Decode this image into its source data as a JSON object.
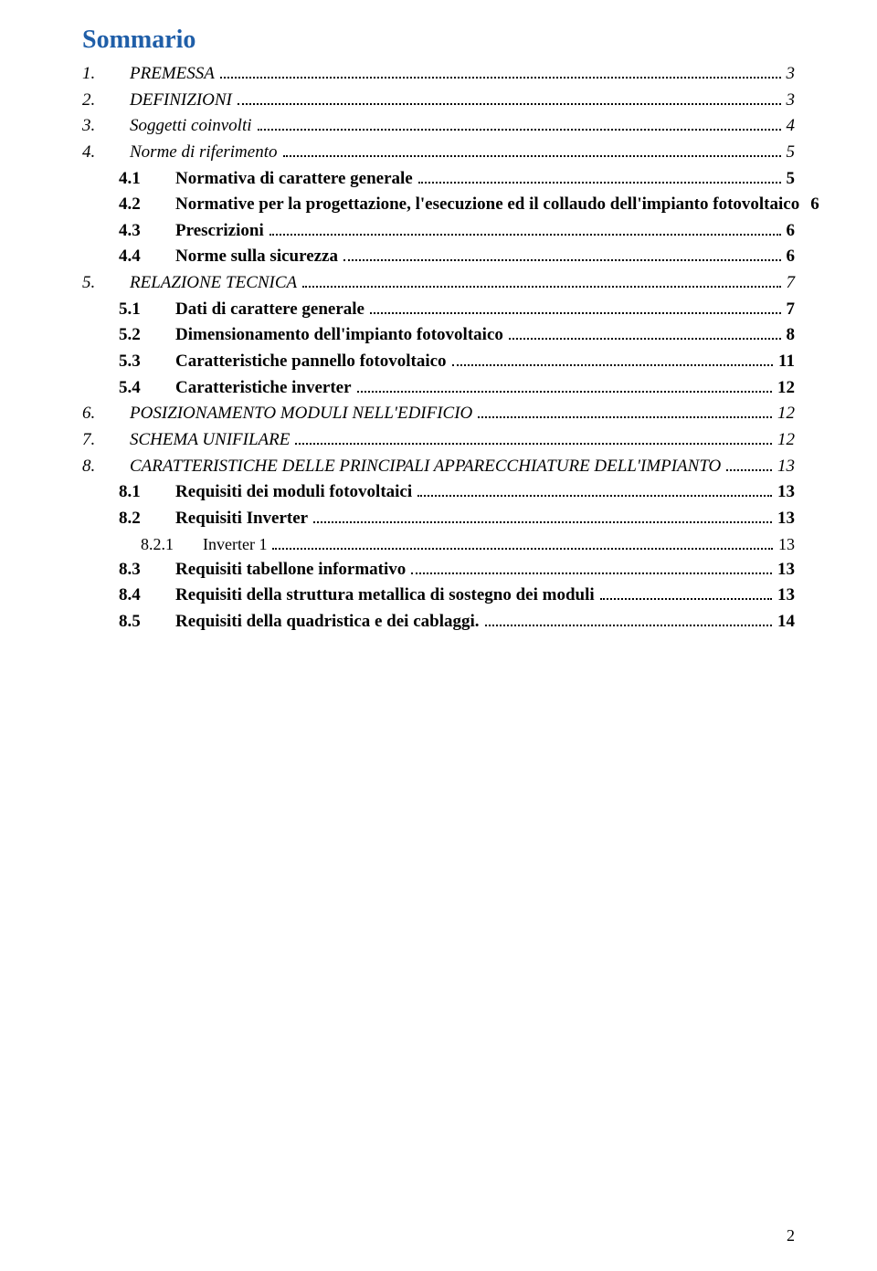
{
  "title": "Sommario",
  "page_number": "2",
  "colors": {
    "title": "#1f5ea8",
    "text": "#000000",
    "background": "#ffffff"
  },
  "entries": [
    {
      "level": 1,
      "num": "1.",
      "label": "PREMESSA",
      "page": "3"
    },
    {
      "level": 1,
      "num": "2.",
      "label": "DEFINIZIONI",
      "page": "3"
    },
    {
      "level": 1,
      "num": "3.",
      "label": "Soggetti coinvolti",
      "page": "4"
    },
    {
      "level": 1,
      "num": "4.",
      "label": "Norme di riferimento",
      "page": "5"
    },
    {
      "level": 2,
      "num": "4.1",
      "label": "Normativa di carattere generale",
      "page": "5"
    },
    {
      "level": 2,
      "num": "4.2",
      "label": "Normative per la progettazione, l'esecuzione ed il collaudo dell'impianto fotovoltaico",
      "page": "6"
    },
    {
      "level": 2,
      "num": "4.3",
      "label": "Prescrizioni",
      "page": "6"
    },
    {
      "level": 2,
      "num": "4.4",
      "label": "Norme sulla sicurezza",
      "page": "6"
    },
    {
      "level": 1,
      "num": "5.",
      "label": "RELAZIONE TECNICA",
      "page": "7"
    },
    {
      "level": 2,
      "num": "5.1",
      "label": "Dati di carattere generale",
      "page": "7"
    },
    {
      "level": 2,
      "num": "5.2",
      "label": "Dimensionamento dell'impianto fotovoltaico",
      "page": "8"
    },
    {
      "level": 2,
      "num": "5.3",
      "label": "Caratteristiche pannello fotovoltaico",
      "page": "11"
    },
    {
      "level": 2,
      "num": "5.4",
      "label": "Caratteristiche inverter",
      "page": "12"
    },
    {
      "level": 1,
      "num": "6.",
      "label": "POSIZIONAMENTO MODULI NELL'EDIFICIO",
      "page": "12"
    },
    {
      "level": 1,
      "num": "7.",
      "label": "SCHEMA UNIFILARE",
      "page": "12"
    },
    {
      "level": 1,
      "num": "8.",
      "label": "CARATTERISTICHE DELLE PRINCIPALI APPARECCHIATURE DELL'IMPIANTO",
      "page": "13"
    },
    {
      "level": 2,
      "num": "8.1",
      "label": "Requisiti dei moduli fotovoltaici",
      "page": "13"
    },
    {
      "level": 2,
      "num": "8.2",
      "label": "Requisiti Inverter",
      "page": "13"
    },
    {
      "level": 3,
      "num": "8.2.1",
      "label": "Inverter 1",
      "page": "13"
    },
    {
      "level": 2,
      "num": "8.3",
      "label": "Requisiti tabellone informativo",
      "page": "13"
    },
    {
      "level": 2,
      "num": "8.4",
      "label": "Requisiti della struttura metallica di sostegno dei moduli",
      "page": "13"
    },
    {
      "level": 2,
      "num": "8.5",
      "label": "Requisiti della quadristica e dei cablaggi.",
      "page": "14"
    }
  ]
}
